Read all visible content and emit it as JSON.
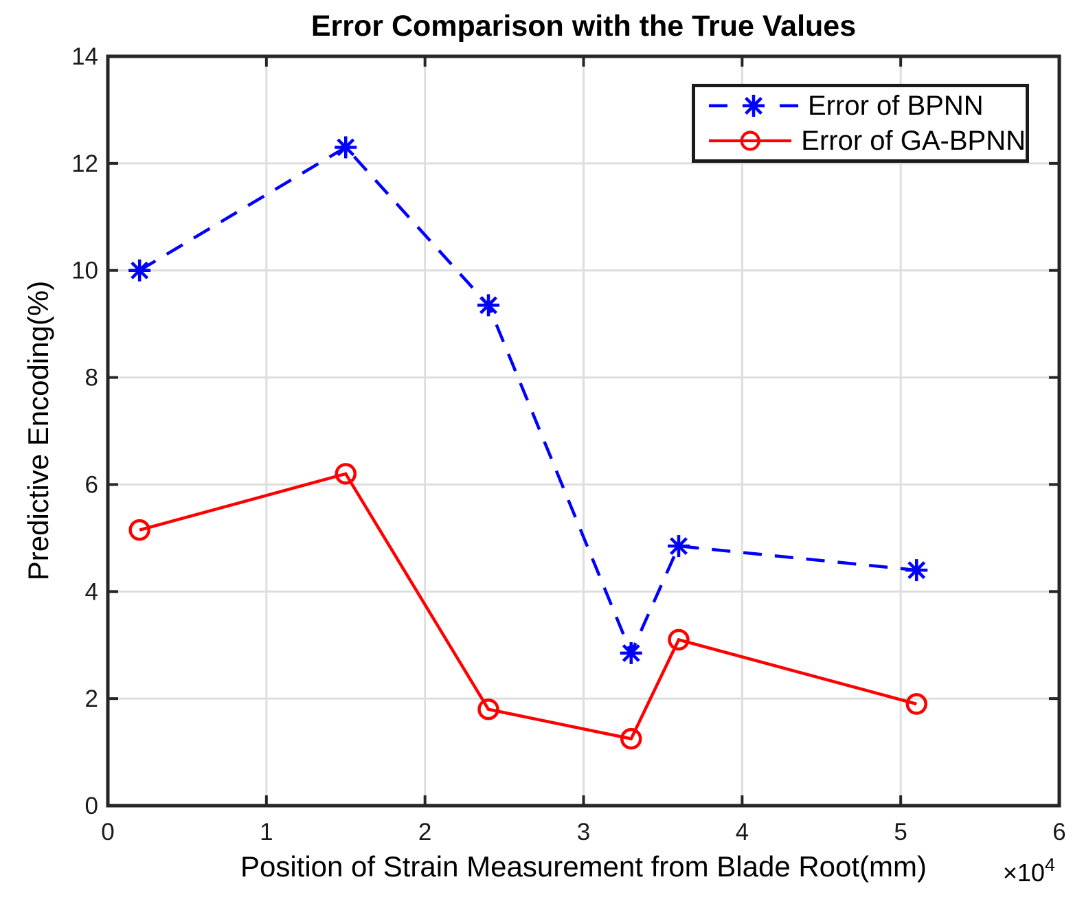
{
  "chart_data": {
    "type": "line",
    "title": "Error Comparison with the True Values",
    "xlabel": "Position of Strain Measurement from Blade Root(mm)",
    "x_axis_multiplier": "×10",
    "x_axis_multiplier_exponent": "4",
    "ylabel": "Predictive Encoding(%)",
    "xlim": [
      0,
      6
    ],
    "ylim": [
      0,
      14
    ],
    "x_ticks": [
      0,
      1,
      2,
      3,
      4,
      5,
      6
    ],
    "y_ticks": [
      0,
      2,
      4,
      6,
      8,
      10,
      12,
      14
    ],
    "grid": true,
    "legend_position": "top-right",
    "series": [
      {
        "name": "Error of BPNN",
        "color": "#0000FF",
        "line_style": "dashed",
        "marker": "asterisk",
        "x": [
          0.2,
          1.5,
          2.4,
          3.3,
          3.6,
          5.1
        ],
        "y": [
          10.0,
          12.3,
          9.35,
          2.85,
          4.85,
          4.4
        ]
      },
      {
        "name": "Error of GA-BPNN",
        "color": "#FF0000",
        "line_style": "solid",
        "marker": "circle",
        "x": [
          0.2,
          1.5,
          2.4,
          3.3,
          3.6,
          5.1
        ],
        "y": [
          5.15,
          6.2,
          1.8,
          1.25,
          3.1,
          1.9
        ]
      }
    ]
  },
  "colors": {
    "background": "#FFFFFF",
    "axis": "#262626",
    "grid": "#DEDEDE",
    "tick_text": "#1a1a1a",
    "legend_border": "#1a1a1a"
  }
}
